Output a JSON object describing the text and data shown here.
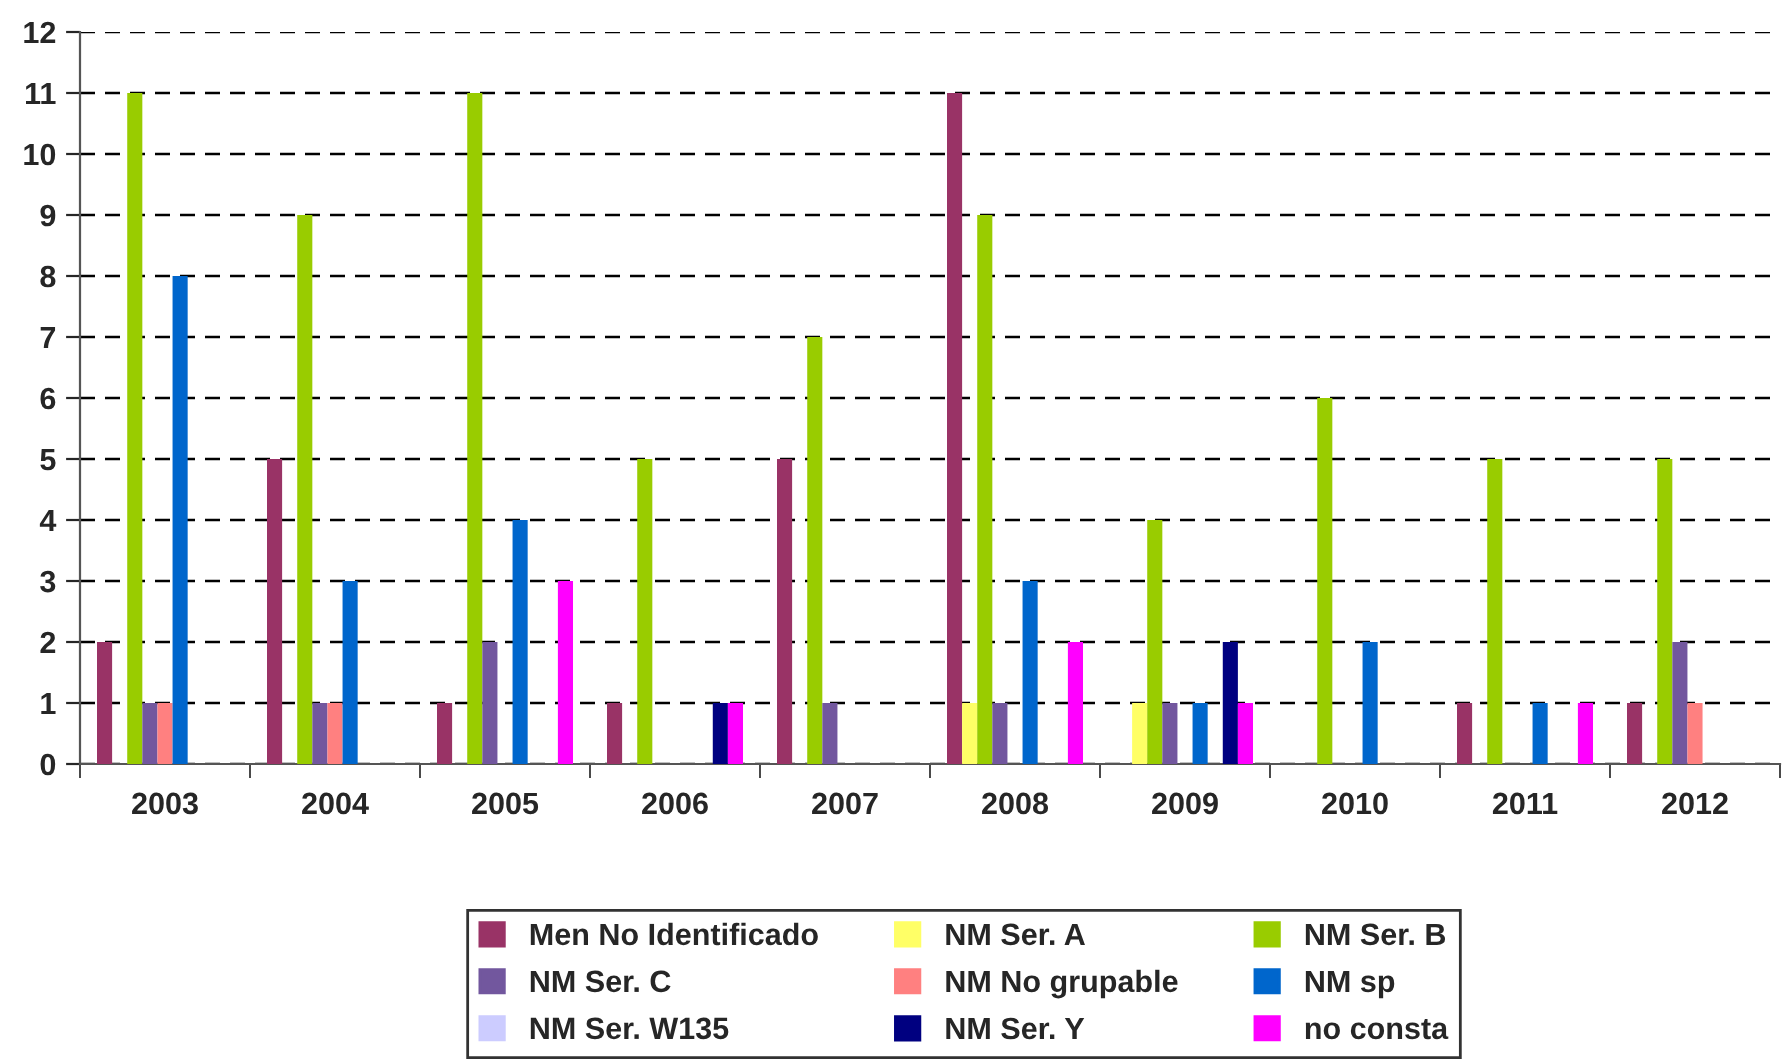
{
  "chart_data": {
    "type": "bar",
    "categories": [
      "2003",
      "2004",
      "2005",
      "2006",
      "2007",
      "2008",
      "2009",
      "2010",
      "2011",
      "2012"
    ],
    "series": [
      {
        "name": "Men No Identificado",
        "color": "#993366",
        "values": [
          2,
          5,
          1,
          1,
          5,
          11,
          0,
          0,
          1,
          1
        ]
      },
      {
        "name": "NM Ser. A",
        "color": "#ffff66",
        "values": [
          0,
          0,
          0,
          0,
          0,
          1,
          1,
          0,
          0,
          0
        ]
      },
      {
        "name": "NM Ser. B",
        "color": "#99cc00",
        "values": [
          11,
          9,
          11,
          5,
          7,
          9,
          4,
          6,
          5,
          5
        ]
      },
      {
        "name": "NM Ser. C",
        "color": "#72579e",
        "values": [
          1,
          1,
          2,
          0,
          1,
          1,
          1,
          0,
          0,
          2
        ]
      },
      {
        "name": "NM No grupable",
        "color": "#ff8080",
        "values": [
          1,
          1,
          0,
          0,
          0,
          0,
          0,
          0,
          0,
          1
        ]
      },
      {
        "name": "NM sp",
        "color": "#0066cc",
        "values": [
          8,
          3,
          4,
          0,
          0,
          3,
          1,
          2,
          1,
          0
        ]
      },
      {
        "name": "NM Ser. W135",
        "color": "#ccccff",
        "values": [
          0,
          0,
          0,
          0,
          0,
          0,
          0,
          0,
          0,
          0
        ]
      },
      {
        "name": "NM Ser. Y",
        "color": "#000080",
        "values": [
          0,
          0,
          0,
          1,
          0,
          0,
          2,
          0,
          0,
          0
        ]
      },
      {
        "name": "no consta",
        "color": "#ff00ff",
        "values": [
          0,
          0,
          3,
          1,
          0,
          2,
          1,
          0,
          1,
          0
        ]
      }
    ],
    "ylim": [
      0,
      12
    ],
    "yticks": [
      0,
      1,
      2,
      3,
      4,
      5,
      6,
      7,
      8,
      9,
      10,
      11,
      12
    ],
    "grid": "y",
    "legend": "bottom"
  }
}
